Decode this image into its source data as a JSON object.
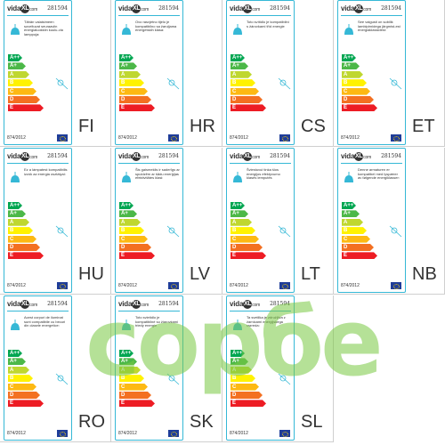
{
  "brand": {
    "name": "vida",
    "mark": "XL",
    "suffix": "com"
  },
  "product_code": "281594",
  "regulation": "874/2012",
  "energy_classes": [
    {
      "label": "A++",
      "color": "#00a651"
    },
    {
      "label": "A+",
      "color": "#4cb848"
    },
    {
      "label": "A",
      "color": "#bfd730"
    },
    {
      "label": "B",
      "color": "#fff200"
    },
    {
      "label": "C",
      "color": "#fdb913"
    },
    {
      "label": "D",
      "color": "#f37021"
    },
    {
      "label": "E",
      "color": "#ed1c24"
    }
  ],
  "labels": [
    {
      "lang": "FI",
      "text": "Tähän valaisimeen soveltuvat seuraaviin energialuokkiin kuulu-via lamppuja:"
    },
    {
      "lang": "HR",
      "text": "Ovo rasvjetno tijelo je kompatibilno sa žaruljama energetskih klasa:"
    },
    {
      "lang": "CS",
      "text": "Toto svítidlo je kompatibilní s žárovkami tříd energie"
    },
    {
      "lang": "ET",
      "text": "See valgusti on sobilik lambipirnidega järgmist-est energiaklassidest:"
    },
    {
      "lang": "HU",
      "text": "Ez a lámpatest kompatibilis izzók az energia osztályai:"
    },
    {
      "lang": "LV",
      "text": "Šis gaismeklis ir saderīgs ar spuldzēm ar šādu enerģijas efektivitātes klasi:"
    },
    {
      "lang": "LT",
      "text": "Šviestuvui tinka šios energijos efektyvumo klasės lemputės"
    },
    {
      "lang": "NB",
      "text": "Denne armaturen er kompatibel med lyspærer av følgende energiklasser:"
    },
    {
      "lang": "RO",
      "text": "Acest corpuri de iluminat sunt compatibile cu becuri din clasele energetice:"
    },
    {
      "lang": "SK",
      "text": "Toto svietidlo je kompatibilné so žiarovkami triedy energie"
    },
    {
      "lang": "SL",
      "text": "Ta svetilka je združljiva z žarnicami energijskega razreda:"
    }
  ],
  "watermark": {
    "text": "сорбе"
  },
  "colors": {
    "accent": "#35b8d6",
    "watermark": "#7ac943",
    "eu_flag": "#1f3d99"
  }
}
